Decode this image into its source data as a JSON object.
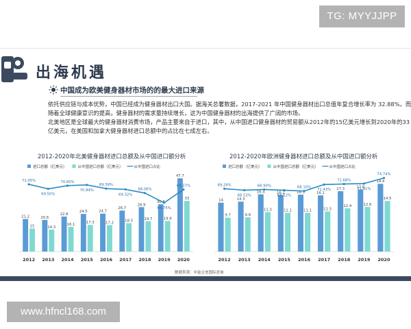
{
  "watermarks": {
    "top": "TG: MYYJJPP",
    "bottom": "www.hfncl168.com"
  },
  "page": {
    "title": "出海机遇"
  },
  "section": {
    "heading": "中国成为欧美健身器材市场的的最大进口来源",
    "paragraphs": [
      "依托供应链与成本优势，中国已经成为健身器材出口大国。据海关总署数据，2017-2021 年中国健身器材出口总值年复合增长率为 32.88%。而",
      "随着全球健康意识的提高，健身器材的需求量持续增长，这为中国健身器材的出海提供了广阔的市场。",
      "北美地区是全球最大的健身器材消费市场，产品主要来自于进口，其中，从中国进口健身器材的贸易额从2012年的15亿美元增长到2020年的33",
      "亿美元，在美国和加拿大健身器材进口总额中的占比在七成左右。"
    ]
  },
  "colors": {
    "bar1": "#5b9bd5",
    "bar2": "#7fd9d2",
    "line": "#2b8cc4",
    "title": "#2e3a4f"
  },
  "source_note": "数据来源：中金企信国际咨询",
  "chart_data": [
    {
      "type": "bar",
      "title": "2012-2020年北美健身器材进口总额及从中国进口额分析",
      "categories": [
        "2012",
        "2013",
        "2014",
        "2015",
        "2016",
        "2017",
        "2018",
        "2019",
        "2020"
      ],
      "series": [
        {
          "name": "进口总额（亿美元）",
          "values": [
            21.2,
            20.6,
            22.8,
            24.5,
            24.7,
            26.7,
            28.9,
            30.8,
            47.7
          ]
        },
        {
          "name": "从中国进口总额（亿美元）",
          "values": [
            15,
            14.3,
            16.1,
            17.3,
            17.2,
            18.5,
            19.7,
            19.9,
            33
          ]
        }
      ],
      "line": {
        "name": "从中国进口占比",
        "values": [
          71.05,
          69.5,
          70.6,
          70.84,
          69.59,
          69.32,
          68.06,
          64.75,
          69.27
        ],
        "labels": [
          "71.05%",
          "69.50%",
          "70.60%",
          "70.84%",
          "69.59%",
          "69.32%",
          "68.06%",
          "64.75%",
          "69.27%"
        ]
      },
      "ylim": [
        0,
        50
      ]
    },
    {
      "type": "bar",
      "title": "2012-2020年欧洲健身器材进口总额及从中国进口额分析",
      "categories": [
        "2012",
        "2013",
        "2014",
        "2015",
        "2016",
        "2017",
        "2018",
        "2019",
        "2020"
      ],
      "series": [
        {
          "name": "进口总额（亿美元）",
          "values": [
            14,
            14.3,
            16.4,
            16.2,
            16.3,
            16.1,
            17.3,
            17.8,
            19.4
          ]
        },
        {
          "name": "从中国进口总额（亿美元）",
          "values": [
            9.7,
            9.8,
            11.3,
            11.1,
            11.1,
            11.5,
            12.4,
            12.8,
            14.5
          ]
        }
      ],
      "line": {
        "name": "从中国进口占比",
        "values": [
          69.29,
          68.53,
          68.9,
          68.52,
          68.1,
          71.43,
          71.68,
          71.91,
          74.74
        ],
        "labels": [
          "69.29%",
          "68.53%",
          "68.90%",
          "68.52%",
          "68.10%",
          "71.43%",
          "71.68%",
          "71.91%",
          "74.74%"
        ]
      },
      "ylim": [
        0,
        22
      ]
    }
  ]
}
